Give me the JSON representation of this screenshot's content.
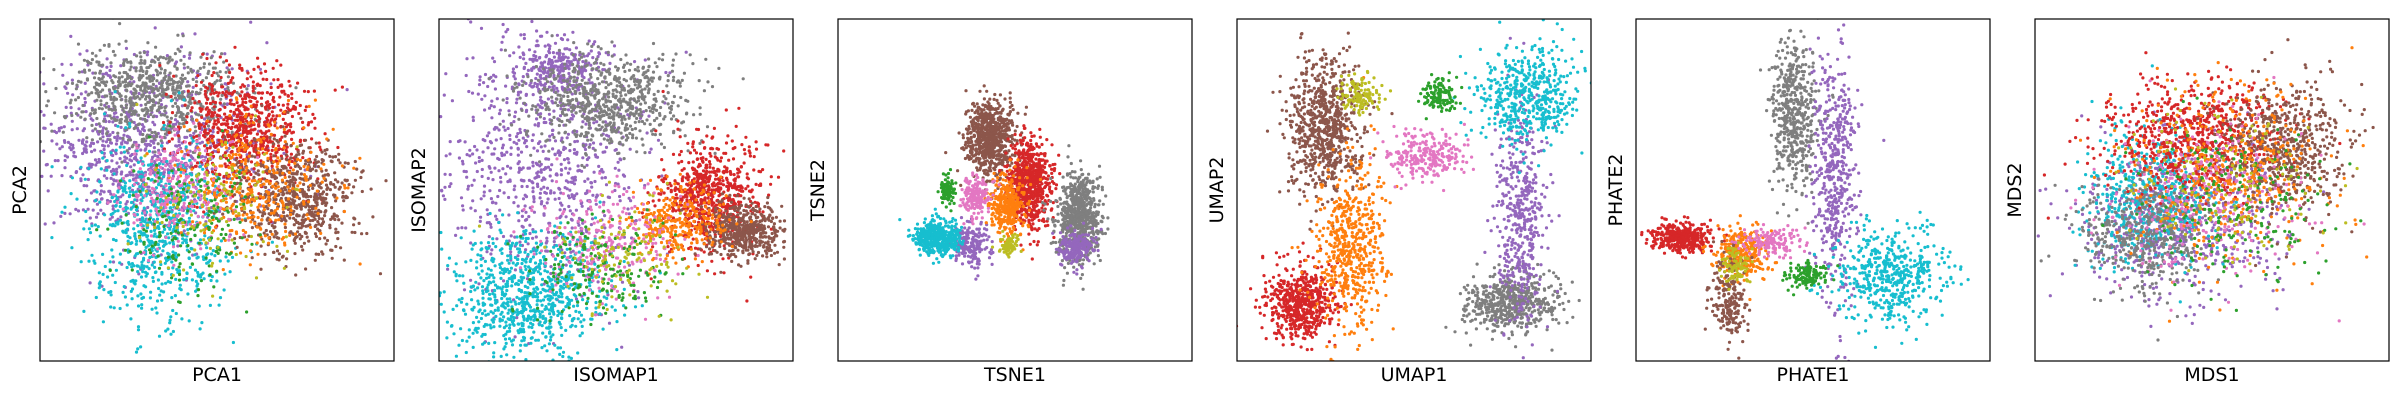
{
  "chart_data": [
    {
      "type": "scatter",
      "xlabel": "PCA1",
      "ylabel": "PCA2",
      "ticks": "none",
      "grid": false,
      "legend": "none",
      "series": [
        {
          "color": "#9467bd",
          "clusters": [
            {
              "cx": 0.3,
              "cy": 0.62,
              "sx": 0.16,
              "sy": 0.14,
              "n": 900
            }
          ]
        },
        {
          "color": "#7f7f7f",
          "clusters": [
            {
              "cx": 0.32,
              "cy": 0.78,
              "sx": 0.12,
              "sy": 0.07,
              "n": 700
            }
          ]
        },
        {
          "color": "#17becf",
          "clusters": [
            {
              "cx": 0.33,
              "cy": 0.38,
              "sx": 0.1,
              "sy": 0.13,
              "n": 700
            }
          ]
        },
        {
          "color": "#d62728",
          "clusters": [
            {
              "cx": 0.58,
              "cy": 0.68,
              "sx": 0.09,
              "sy": 0.09,
              "n": 700
            }
          ]
        },
        {
          "color": "#8c564b",
          "clusters": [
            {
              "cx": 0.72,
              "cy": 0.48,
              "sx": 0.09,
              "sy": 0.08,
              "n": 650
            }
          ]
        },
        {
          "color": "#ff7f0e",
          "clusters": [
            {
              "cx": 0.6,
              "cy": 0.52,
              "sx": 0.1,
              "sy": 0.1,
              "n": 350
            }
          ]
        },
        {
          "color": "#e377c2",
          "clusters": [
            {
              "cx": 0.38,
              "cy": 0.5,
              "sx": 0.08,
              "sy": 0.08,
              "n": 250
            }
          ]
        },
        {
          "color": "#2ca02c",
          "clusters": [
            {
              "cx": 0.42,
              "cy": 0.4,
              "sx": 0.09,
              "sy": 0.1,
              "n": 180
            }
          ]
        },
        {
          "color": "#bcbd22",
          "clusters": [
            {
              "cx": 0.5,
              "cy": 0.45,
              "sx": 0.1,
              "sy": 0.1,
              "n": 120
            }
          ]
        }
      ]
    },
    {
      "type": "scatter",
      "xlabel": "ISOMAP1",
      "ylabel": "ISOMAP2",
      "ticks": "none",
      "grid": false,
      "legend": "none",
      "series": [
        {
          "color": "#9467bd",
          "clusters": [
            {
              "cx": 0.3,
              "cy": 0.58,
              "sx": 0.14,
              "sy": 0.2,
              "n": 800
            },
            {
              "cx": 0.33,
              "cy": 0.85,
              "sx": 0.06,
              "sy": 0.05,
              "n": 250
            }
          ]
        },
        {
          "color": "#7f7f7f",
          "clusters": [
            {
              "cx": 0.48,
              "cy": 0.76,
              "sx": 0.12,
              "sy": 0.07,
              "n": 700
            }
          ]
        },
        {
          "color": "#17becf",
          "clusters": [
            {
              "cx": 0.25,
              "cy": 0.2,
              "sx": 0.11,
              "sy": 0.09,
              "n": 800
            }
          ]
        },
        {
          "color": "#d62728",
          "clusters": [
            {
              "cx": 0.76,
              "cy": 0.48,
              "sx": 0.07,
              "sy": 0.08,
              "n": 700
            }
          ]
        },
        {
          "color": "#8c564b",
          "clusters": [
            {
              "cx": 0.86,
              "cy": 0.38,
              "sx": 0.05,
              "sy": 0.04,
              "n": 500
            }
          ]
        },
        {
          "color": "#ff7f0e",
          "clusters": [
            {
              "cx": 0.68,
              "cy": 0.4,
              "sx": 0.07,
              "sy": 0.05,
              "n": 300
            }
          ]
        },
        {
          "color": "#e377c2",
          "clusters": [
            {
              "cx": 0.48,
              "cy": 0.35,
              "sx": 0.1,
              "sy": 0.08,
              "n": 250
            }
          ]
        },
        {
          "color": "#2ca02c",
          "clusters": [
            {
              "cx": 0.45,
              "cy": 0.28,
              "sx": 0.1,
              "sy": 0.07,
              "n": 180
            }
          ]
        },
        {
          "color": "#bcbd22",
          "clusters": [
            {
              "cx": 0.52,
              "cy": 0.32,
              "sx": 0.1,
              "sy": 0.08,
              "n": 120
            }
          ]
        }
      ]
    },
    {
      "type": "scatter",
      "xlabel": "TSNE1",
      "ylabel": "TSNE2",
      "ticks": "none",
      "grid": false,
      "legend": "none",
      "series": [
        {
          "color": "#8c564b",
          "clusters": [
            {
              "cx": 0.43,
              "cy": 0.65,
              "sx": 0.035,
              "sy": 0.055,
              "n": 700
            }
          ]
        },
        {
          "color": "#d62728",
          "clusters": [
            {
              "cx": 0.54,
              "cy": 0.52,
              "sx": 0.03,
              "sy": 0.065,
              "n": 700
            }
          ]
        },
        {
          "color": "#7f7f7f",
          "clusters": [
            {
              "cx": 0.68,
              "cy": 0.42,
              "sx": 0.03,
              "sy": 0.065,
              "n": 700
            }
          ]
        },
        {
          "color": "#9467bd",
          "clusters": [
            {
              "cx": 0.67,
              "cy": 0.33,
              "sx": 0.025,
              "sy": 0.025,
              "n": 220
            },
            {
              "cx": 0.37,
              "cy": 0.34,
              "sx": 0.025,
              "sy": 0.03,
              "n": 200
            }
          ]
        },
        {
          "color": "#ff7f0e",
          "clusters": [
            {
              "cx": 0.48,
              "cy": 0.45,
              "sx": 0.025,
              "sy": 0.045,
              "n": 350
            }
          ]
        },
        {
          "color": "#17becf",
          "clusters": [
            {
              "cx": 0.28,
              "cy": 0.36,
              "sx": 0.03,
              "sy": 0.025,
              "n": 500
            }
          ]
        },
        {
          "color": "#e377c2",
          "clusters": [
            {
              "cx": 0.39,
              "cy": 0.48,
              "sx": 0.02,
              "sy": 0.03,
              "n": 180
            }
          ]
        },
        {
          "color": "#2ca02c",
          "clusters": [
            {
              "cx": 0.31,
              "cy": 0.5,
              "sx": 0.012,
              "sy": 0.02,
              "n": 90
            }
          ]
        },
        {
          "color": "#bcbd22",
          "clusters": [
            {
              "cx": 0.48,
              "cy": 0.34,
              "sx": 0.012,
              "sy": 0.015,
              "n": 80
            }
          ]
        }
      ]
    },
    {
      "type": "scatter",
      "xlabel": "UMAP1",
      "ylabel": "UMAP2",
      "ticks": "none",
      "grid": false,
      "legend": "none",
      "series": [
        {
          "color": "#8c564b",
          "clusters": [
            {
              "cx": 0.25,
              "cy": 0.68,
              "sx": 0.05,
              "sy": 0.1,
              "n": 750
            }
          ]
        },
        {
          "color": "#d62728",
          "clusters": [
            {
              "cx": 0.18,
              "cy": 0.17,
              "sx": 0.05,
              "sy": 0.05,
              "n": 600
            }
          ]
        },
        {
          "color": "#ff7f0e",
          "clusters": [
            {
              "cx": 0.32,
              "cy": 0.34,
              "sx": 0.05,
              "sy": 0.12,
              "n": 550
            }
          ]
        },
        {
          "color": "#7f7f7f",
          "clusters": [
            {
              "cx": 0.78,
              "cy": 0.17,
              "sx": 0.07,
              "sy": 0.04,
              "n": 550
            }
          ]
        },
        {
          "color": "#9467bd",
          "clusters": [
            {
              "cx": 0.8,
              "cy": 0.42,
              "sx": 0.035,
              "sy": 0.16,
              "n": 450
            }
          ]
        },
        {
          "color": "#17becf",
          "clusters": [
            {
              "cx": 0.82,
              "cy": 0.78,
              "sx": 0.07,
              "sy": 0.07,
              "n": 500
            }
          ]
        },
        {
          "color": "#e377c2",
          "clusters": [
            {
              "cx": 0.53,
              "cy": 0.6,
              "sx": 0.06,
              "sy": 0.035,
              "n": 250
            }
          ]
        },
        {
          "color": "#2ca02c",
          "clusters": [
            {
              "cx": 0.57,
              "cy": 0.78,
              "sx": 0.025,
              "sy": 0.025,
              "n": 120
            }
          ]
        },
        {
          "color": "#bcbd22",
          "clusters": [
            {
              "cx": 0.35,
              "cy": 0.78,
              "sx": 0.025,
              "sy": 0.03,
              "n": 120
            }
          ]
        }
      ]
    },
    {
      "type": "scatter",
      "xlabel": "PHATE1",
      "ylabel": "PHATE2",
      "ticks": "none",
      "grid": false,
      "legend": "none",
      "series": [
        {
          "color": "#7f7f7f",
          "clusters": [
            {
              "cx": 0.45,
              "cy": 0.72,
              "sx": 0.03,
              "sy": 0.11,
              "n": 500
            }
          ]
        },
        {
          "color": "#9467bd",
          "clusters": [
            {
              "cx": 0.56,
              "cy": 0.55,
              "sx": 0.03,
              "sy": 0.18,
              "n": 500
            }
          ]
        },
        {
          "color": "#17becf",
          "clusters": [
            {
              "cx": 0.72,
              "cy": 0.25,
              "sx": 0.08,
              "sy": 0.07,
              "n": 500
            }
          ]
        },
        {
          "color": "#d62728",
          "clusters": [
            {
              "cx": 0.13,
              "cy": 0.36,
              "sx": 0.04,
              "sy": 0.02,
              "n": 400
            }
          ]
        },
        {
          "color": "#ff7f0e",
          "clusters": [
            {
              "cx": 0.3,
              "cy": 0.32,
              "sx": 0.04,
              "sy": 0.04,
              "n": 300
            }
          ]
        },
        {
          "color": "#8c564b",
          "clusters": [
            {
              "cx": 0.26,
              "cy": 0.18,
              "sx": 0.025,
              "sy": 0.06,
              "n": 200
            }
          ]
        },
        {
          "color": "#e377c2",
          "clusters": [
            {
              "cx": 0.38,
              "cy": 0.35,
              "sx": 0.04,
              "sy": 0.02,
              "n": 150
            }
          ]
        },
        {
          "color": "#2ca02c",
          "clusters": [
            {
              "cx": 0.48,
              "cy": 0.25,
              "sx": 0.03,
              "sy": 0.02,
              "n": 120
            }
          ]
        },
        {
          "color": "#bcbd22",
          "clusters": [
            {
              "cx": 0.28,
              "cy": 0.28,
              "sx": 0.02,
              "sy": 0.03,
              "n": 80
            }
          ]
        }
      ]
    },
    {
      "type": "scatter",
      "xlabel": "MDS1",
      "ylabel": "MDS2",
      "ticks": "none",
      "grid": false,
      "legend": "none",
      "series": [
        {
          "color": "#9467bd",
          "clusters": [
            {
              "cx": 0.42,
              "cy": 0.42,
              "sx": 0.14,
              "sy": 0.11,
              "n": 700
            }
          ]
        },
        {
          "color": "#17becf",
          "clusters": [
            {
              "cx": 0.32,
              "cy": 0.48,
              "sx": 0.09,
              "sy": 0.1,
              "n": 500
            }
          ]
        },
        {
          "color": "#7f7f7f",
          "clusters": [
            {
              "cx": 0.3,
              "cy": 0.38,
              "sx": 0.09,
              "sy": 0.08,
              "n": 450
            }
          ]
        },
        {
          "color": "#d62728",
          "clusters": [
            {
              "cx": 0.45,
              "cy": 0.65,
              "sx": 0.13,
              "sy": 0.08,
              "n": 700
            }
          ]
        },
        {
          "color": "#8c564b",
          "clusters": [
            {
              "cx": 0.7,
              "cy": 0.62,
              "sx": 0.09,
              "sy": 0.1,
              "n": 600
            }
          ]
        },
        {
          "color": "#ff7f0e",
          "clusters": [
            {
              "cx": 0.55,
              "cy": 0.55,
              "sx": 0.15,
              "sy": 0.13,
              "n": 400
            }
          ]
        },
        {
          "color": "#e377c2",
          "clusters": [
            {
              "cx": 0.5,
              "cy": 0.48,
              "sx": 0.14,
              "sy": 0.12,
              "n": 250
            }
          ]
        },
        {
          "color": "#2ca02c",
          "clusters": [
            {
              "cx": 0.55,
              "cy": 0.45,
              "sx": 0.15,
              "sy": 0.12,
              "n": 200
            }
          ]
        },
        {
          "color": "#bcbd22",
          "clusters": [
            {
              "cx": 0.52,
              "cy": 0.52,
              "sx": 0.15,
              "sy": 0.12,
              "n": 150
            }
          ]
        }
      ]
    }
  ]
}
